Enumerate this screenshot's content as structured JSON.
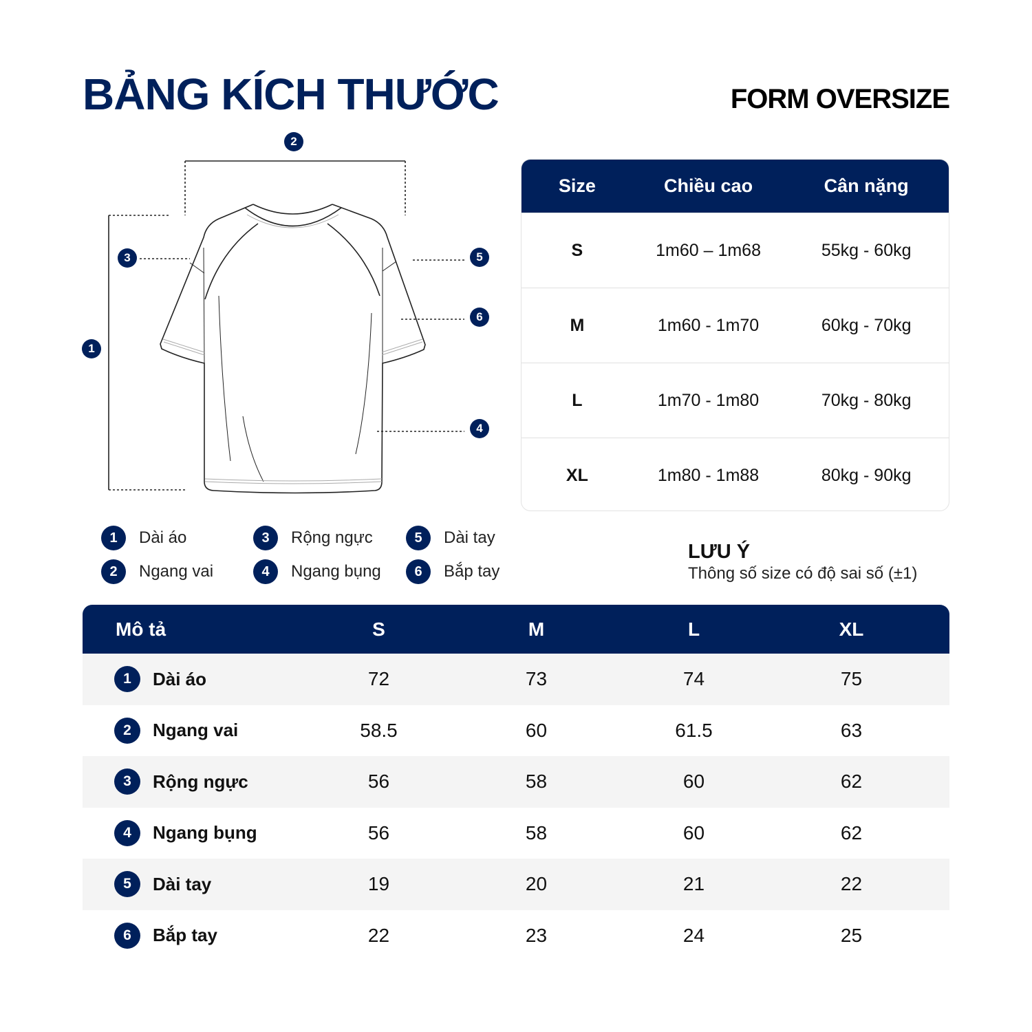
{
  "header": {
    "title": "BẢNG KÍCH THƯỚC",
    "form": "FORM OVERSIZE"
  },
  "colors": {
    "accent": "#00205b",
    "stripe": "#f4f4f4"
  },
  "diagram": {
    "markers": [
      "1",
      "2",
      "3",
      "4",
      "5",
      "6"
    ]
  },
  "size_table": {
    "headers": [
      "Size",
      "Chiều cao",
      "Cân nặng"
    ],
    "rows": [
      [
        "S",
        "1m60 – 1m68",
        "55kg - 60kg"
      ],
      [
        "M",
        "1m60 - 1m70",
        "60kg - 70kg"
      ],
      [
        "L",
        "1m70 - 1m80",
        "70kg - 80kg"
      ],
      [
        "XL",
        "1m80 - 1m88",
        "80kg - 90kg"
      ]
    ]
  },
  "legend": [
    {
      "num": "1",
      "label": "Dài áo"
    },
    {
      "num": "2",
      "label": "Ngang vai"
    },
    {
      "num": "3",
      "label": "Rộng ngực"
    },
    {
      "num": "4",
      "label": "Ngang bụng"
    },
    {
      "num": "5",
      "label": "Dài tay"
    },
    {
      "num": "6",
      "label": "Bắp tay"
    }
  ],
  "note": {
    "title": "LƯU Ý",
    "text": "Thông số size có độ sai số (±1)"
  },
  "measure_table": {
    "headers": [
      "Mô tả",
      "S",
      "M",
      "L",
      "XL"
    ],
    "rows": [
      {
        "num": "1",
        "name": "Dài áo",
        "values": [
          "72",
          "73",
          "74",
          "75"
        ]
      },
      {
        "num": "2",
        "name": "Ngang vai",
        "values": [
          "58.5",
          "60",
          "61.5",
          "63"
        ]
      },
      {
        "num": "3",
        "name": "Rộng ngực",
        "values": [
          "56",
          "58",
          "60",
          "62"
        ]
      },
      {
        "num": "4",
        "name": "Ngang bụng",
        "values": [
          "56",
          "58",
          "60",
          "62"
        ]
      },
      {
        "num": "5",
        "name": "Dài tay",
        "values": [
          "19",
          "20",
          "21",
          "22"
        ]
      },
      {
        "num": "6",
        "name": "Bắp tay",
        "values": [
          "22",
          "23",
          "24",
          "25"
        ]
      }
    ]
  }
}
